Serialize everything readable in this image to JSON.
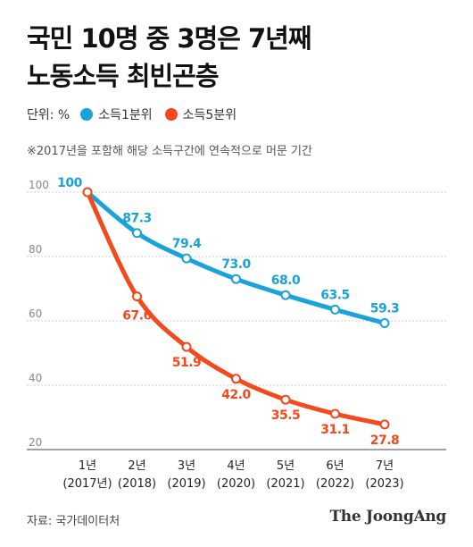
{
  "title_lines": [
    "국민 10명 중 3명은 7년째",
    "노동소득 최빈곤층"
  ],
  "legend": {
    "unit": "단위: %",
    "items": [
      {
        "label": "소득1분위",
        "color": "#1aa3d9"
      },
      {
        "label": "소득5분위",
        "color": "#f24a1d"
      }
    ]
  },
  "note": "※2017년을 포함해 해당 소득구간에 연속적으로 머문 기간",
  "source": "자료: 국가데이터처",
  "logo": "The JoongAng",
  "chart_data": {
    "type": "line",
    "x": [
      "1년",
      "2년",
      "3년",
      "4년",
      "5년",
      "6년",
      "7년"
    ],
    "x_sub": [
      "(2017년)",
      "(2018)",
      "(2019)",
      "(2020)",
      "(2021)",
      "(2022)",
      "(2023)"
    ],
    "ylim": [
      20,
      100
    ],
    "yticks": [
      20,
      40,
      60,
      80,
      100
    ],
    "grid": true,
    "series": [
      {
        "name": "소득1분위",
        "color": "#1aa3d9",
        "values": [
          100,
          87.3,
          79.4,
          73.0,
          68.0,
          63.5,
          59.3
        ],
        "labels": [
          "100",
          "87.3",
          "79.4",
          "73.0",
          "68.0",
          "63.5",
          "59.3"
        ]
      },
      {
        "name": "소득5분위",
        "color": "#f24a1d",
        "values": [
          100,
          67.6,
          51.9,
          42.0,
          35.5,
          31.1,
          27.8
        ],
        "labels": [
          "",
          "67.6",
          "51.9",
          "42.0",
          "35.5",
          "31.1",
          "27.8"
        ]
      }
    ]
  }
}
